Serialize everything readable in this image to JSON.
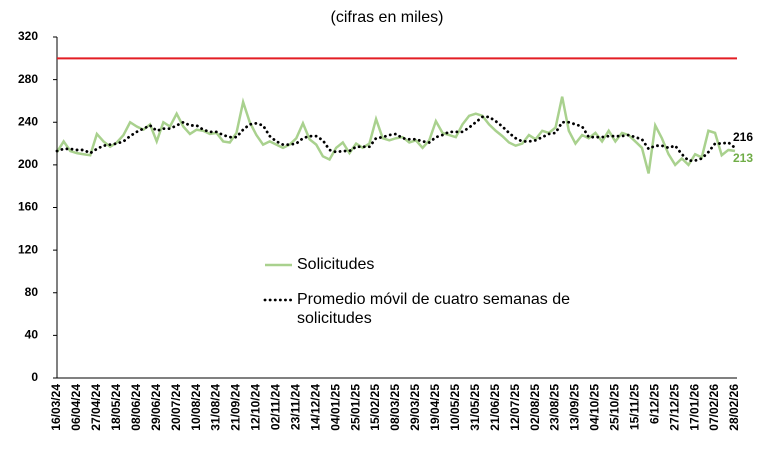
{
  "chart_data": {
    "type": "line",
    "subtitle": "(cifras en miles)",
    "categories": [
      "16/03/24",
      null,
      null,
      "06/04/24",
      null,
      null,
      "27/04/24",
      null,
      null,
      "18/05/24",
      null,
      null,
      "08/06/24",
      null,
      null,
      "29/06/24",
      null,
      null,
      "20/07/24",
      null,
      null,
      "10/08/24",
      null,
      null,
      "31/08/24",
      null,
      null,
      "21/09/24",
      null,
      null,
      "12/10/24",
      null,
      null,
      "02/11/24",
      null,
      null,
      "23/11/24",
      null,
      null,
      "14/12/24",
      null,
      null,
      "04/01/25",
      null,
      null,
      "25/01/25",
      null,
      null,
      "15/02/25",
      null,
      null,
      "08/03/25",
      null,
      null,
      "29/03/25",
      null,
      null,
      "19/04/25",
      null,
      null,
      "10/05/25",
      null,
      null,
      "31/05/25",
      null,
      null,
      "21/06/25",
      null,
      null,
      "12/07/25",
      null,
      null,
      "02/08/25",
      null,
      null,
      "23/08/25",
      null,
      null,
      "13/09/25",
      null,
      null,
      "04/10/25",
      null,
      null,
      "25/10/25",
      null,
      null,
      "15/11/25",
      null,
      null,
      "6/12/25",
      null,
      null,
      "27/12/25",
      null,
      null,
      "17/01/26",
      null,
      null,
      "07/02/26",
      null,
      null,
      "28/02/26"
    ],
    "series": [
      {
        "name": "Solicitudes",
        "color": "#a9d18e",
        "dash": false,
        "end_label": "213",
        "values": [
          212,
          222,
          213,
          211,
          210,
          209,
          229,
          222,
          217,
          221,
          228,
          240,
          236,
          233,
          238,
          222,
          240,
          236,
          248,
          236,
          229,
          233,
          232,
          229,
          230,
          222,
          221,
          230,
          259,
          240,
          228,
          219,
          222,
          219,
          216,
          219,
          225,
          239,
          224,
          219,
          208,
          205,
          216,
          221,
          211,
          220,
          216,
          220,
          243,
          225,
          223,
          225,
          226,
          221,
          223,
          216,
          223,
          241,
          230,
          228,
          226,
          238,
          246,
          248,
          246,
          238,
          232,
          227,
          221,
          218,
          220,
          228,
          224,
          232,
          230,
          235,
          264,
          232,
          220,
          228,
          225,
          230,
          222,
          232,
          222,
          230,
          228,
          222,
          216,
          192,
          237,
          225,
          210,
          200,
          206,
          200,
          210,
          207,
          232,
          230,
          209,
          214,
          213
        ]
      },
      {
        "name": "Promedio móvil de cuatro semanas de solicitudes",
        "color": "#000000",
        "dash": true,
        "end_label": "216",
        "values": [
          213,
          215,
          215,
          214,
          214,
          211,
          215,
          218,
          219,
          220,
          222,
          227,
          231,
          234,
          237,
          232,
          234,
          234,
          237,
          240,
          237,
          237,
          233,
          231,
          231,
          228,
          226,
          226,
          233,
          238,
          239,
          237,
          227,
          222,
          219,
          219,
          220,
          225,
          227,
          227,
          223,
          214,
          212,
          213,
          213,
          217,
          217,
          217,
          225,
          226,
          228,
          229,
          225,
          224,
          224,
          222,
          221,
          226,
          228,
          231,
          231,
          231,
          235,
          240,
          245,
          245,
          241,
          236,
          230,
          225,
          222,
          222,
          223,
          226,
          229,
          230,
          240,
          240,
          238,
          236,
          226,
          226,
          226,
          227,
          227,
          227,
          228,
          226,
          224,
          215,
          218,
          218,
          216,
          218,
          210,
          204,
          204,
          206,
          212,
          220,
          220,
          221,
          216
        ]
      }
    ],
    "reference_line": {
      "value": 300,
      "color": "#e31e24"
    },
    "ylim": [
      0,
      320
    ],
    "yticks": [
      0,
      40,
      80,
      120,
      160,
      200,
      240,
      280,
      320
    ]
  }
}
